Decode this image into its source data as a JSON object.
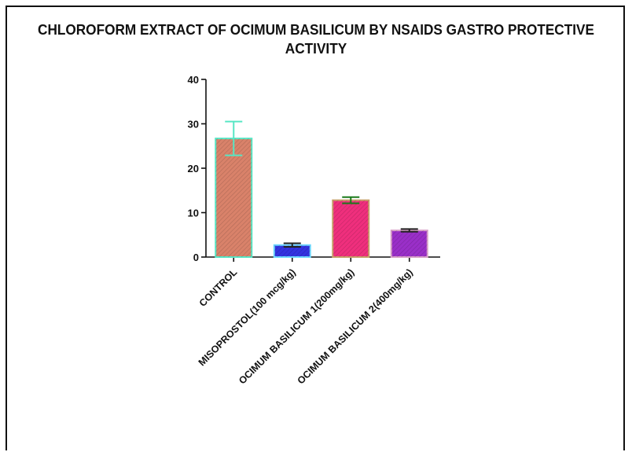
{
  "chart_data": {
    "type": "bar",
    "title": "CHLOROFORM EXTRACT OF OCIMUM BASILICUM BY NSAIDS GASTRO PROTECTIVE ACTIVITY",
    "title_lines": [
      "CHLOROFORM EXTRACT OF OCIMUM BASILICUM BY NSAIDS GASTRO PROTECTIVE",
      "ACTIVITY"
    ],
    "xlabel": "",
    "ylabel": "",
    "ylim": [
      0,
      40
    ],
    "yticks": [
      0,
      10,
      20,
      30,
      40
    ],
    "categories": [
      "CONTROL",
      "MISOPROSTOL(100 mcg/kg)",
      "OCIMUM BASILICUM 1(200mg/kg)",
      "OCIMUM BASILICUM 2(400mg/kg)"
    ],
    "values": [
      26.7,
      2.7,
      12.8,
      6.0
    ],
    "errors": [
      3.8,
      0.4,
      0.7,
      0.3
    ],
    "colors": [
      "#d9826a",
      "#3333e0",
      "#ef2f7d",
      "#9a2fc8"
    ],
    "edge_colors": [
      "#57e6c4",
      "#6fd7ff",
      "#c8a06a",
      "#d8a0c8"
    ],
    "error_colors": [
      "#57e6c4",
      "#222222",
      "#1a7a1a",
      "#222222"
    ],
    "grid": false,
    "legend": "none"
  }
}
